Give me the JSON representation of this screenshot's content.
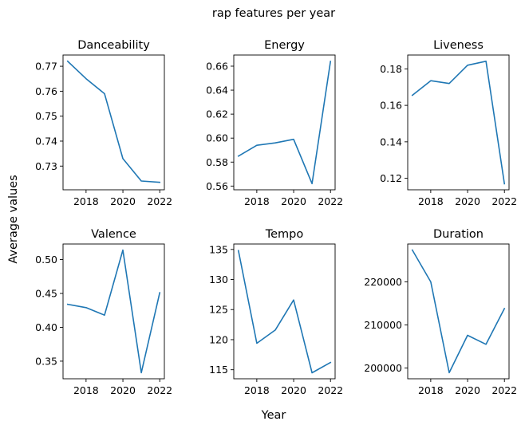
{
  "title": "rap features per year",
  "xlabel": "Year",
  "ylabel": "Average values",
  "chart_data": [
    {
      "type": "line",
      "title": "Danceability",
      "x": [
        2017,
        2018,
        2019,
        2020,
        2021,
        2022
      ],
      "values": [
        0.772,
        0.765,
        0.759,
        0.733,
        0.724,
        0.7235
      ],
      "xlim": [
        2016.75,
        2022.25
      ],
      "xticks": [
        2018,
        2020,
        2022
      ],
      "ylim": [
        0.7205,
        0.7745
      ],
      "yticks": [
        0.73,
        0.74,
        0.75,
        0.76,
        0.77
      ],
      "ytick_decimals": 2,
      "color": "#1f77b4"
    },
    {
      "type": "line",
      "title": "Energy",
      "x": [
        2017,
        2018,
        2019,
        2020,
        2021,
        2022
      ],
      "values": [
        0.585,
        0.594,
        0.596,
        0.599,
        0.562,
        0.664
      ],
      "xlim": [
        2016.75,
        2022.25
      ],
      "xticks": [
        2018,
        2020,
        2022
      ],
      "ylim": [
        0.5569,
        0.6693
      ],
      "yticks": [
        0.56,
        0.58,
        0.6,
        0.62,
        0.64,
        0.66
      ],
      "ytick_decimals": 2,
      "color": "#1f77b4"
    },
    {
      "type": "line",
      "title": "Liveness",
      "x": [
        2017,
        2018,
        2019,
        2020,
        2021,
        2022
      ],
      "values": [
        0.1655,
        0.1735,
        0.172,
        0.182,
        0.1842,
        0.117
      ],
      "xlim": [
        2016.75,
        2022.25
      ],
      "xticks": [
        2018,
        2020,
        2022
      ],
      "ylim": [
        0.1137,
        0.1876
      ],
      "yticks": [
        0.12,
        0.14,
        0.16,
        0.18
      ],
      "ytick_decimals": 2,
      "color": "#1f77b4"
    },
    {
      "type": "line",
      "title": "Valence",
      "x": [
        2017,
        2018,
        2019,
        2020,
        2021,
        2022
      ],
      "values": [
        0.434,
        0.429,
        0.418,
        0.514,
        0.333,
        0.451
      ],
      "xlim": [
        2016.75,
        2022.25
      ],
      "xticks": [
        2018,
        2020,
        2022
      ],
      "ylim": [
        0.324,
        0.523
      ],
      "yticks": [
        0.35,
        0.4,
        0.45,
        0.5
      ],
      "ytick_decimals": 2,
      "color": "#1f77b4"
    },
    {
      "type": "line",
      "title": "Tempo",
      "x": [
        2017,
        2018,
        2019,
        2020,
        2021,
        2022
      ],
      "values": [
        134.8,
        119.4,
        121.6,
        126.6,
        114.5,
        116.2
      ],
      "xlim": [
        2016.75,
        2022.25
      ],
      "xticks": [
        2018,
        2020,
        2022
      ],
      "ylim": [
        113.5,
        135.9
      ],
      "yticks": [
        115,
        120,
        125,
        130,
        135
      ],
      "ytick_decimals": 0,
      "color": "#1f77b4"
    },
    {
      "type": "line",
      "title": "Duration",
      "x": [
        2017,
        2018,
        2019,
        2020,
        2021,
        2022
      ],
      "values": [
        227400,
        220000,
        198900,
        207600,
        205500,
        213800
      ],
      "xlim": [
        2016.75,
        2022.25
      ],
      "xticks": [
        2018,
        2020,
        2022
      ],
      "ylim": [
        197500,
        228800
      ],
      "yticks": [
        200000,
        210000,
        220000
      ],
      "ytick_decimals": 0,
      "color": "#1f77b4"
    }
  ]
}
